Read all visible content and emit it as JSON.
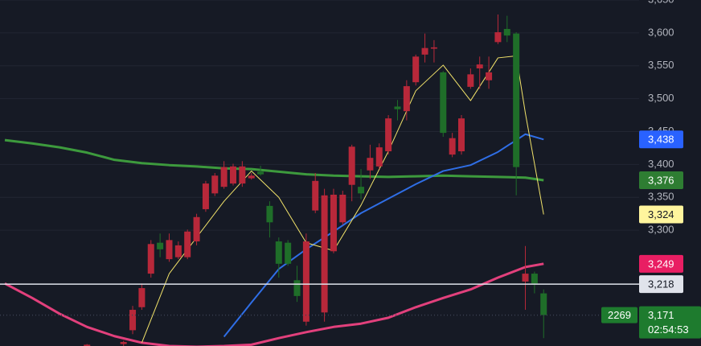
{
  "chart_data": {
    "type": "candlestick",
    "background": "#161a25",
    "grid": true,
    "up_color": "#b8283a",
    "down_color": "#1f6e29",
    "ylim": [
      3124,
      3650
    ],
    "yticks": [
      {
        "value": 3650,
        "label": "3,650"
      },
      {
        "value": 3600,
        "label": "3,600"
      },
      {
        "value": 3550,
        "label": "3,550"
      },
      {
        "value": 3500,
        "label": "3,500"
      },
      {
        "value": 3450,
        "label": "3,450"
      },
      {
        "value": 3400,
        "label": "3,400"
      },
      {
        "value": 3350,
        "label": "3,350"
      },
      {
        "value": 3300,
        "label": "3,300"
      }
    ],
    "open": [
      null,
      null,
      null,
      null,
      null,
      null,
      null,
      null,
      null,
      3124,
      null,
      null,
      null,
      3127,
      3148,
      3183,
      3234,
      3281,
      3256,
      3259,
      3259,
      3283,
      3332,
      3356,
      3366,
      3371,
      3371,
      3379,
      3389,
      3337,
      3283,
      3281,
      3224,
      3161,
      3330,
      3175,
      3268,
      3312,
      3369,
      3366,
      3391,
      3397,
      3420,
      3488,
      3481,
      3525,
      3567,
      3576,
      3540,
      3415,
      3420,
      3518,
      3546,
      3528,
      3586,
      3606,
      3599,
      3222,
      3234,
      3204
    ],
    "high": [
      null,
      null,
      null,
      null,
      null,
      null,
      null,
      null,
      null,
      3127,
      null,
      null,
      null,
      3132,
      3185,
      3219,
      3285,
      3295,
      3295,
      3283,
      3301,
      3325,
      3375,
      3387,
      3405,
      3401,
      3405,
      3387,
      3398,
      3344,
      3289,
      3285,
      3246,
      3295,
      3387,
      3363,
      3363,
      3360,
      3430,
      3393,
      3430,
      3432,
      3475,
      3498,
      3528,
      3567,
      3599,
      3589,
      3542,
      3448,
      3475,
      3546,
      3564,
      3564,
      3628,
      3626,
      3601,
      3276,
      3237,
      3210
    ],
    "low": [
      null,
      null,
      null,
      null,
      null,
      null,
      null,
      null,
      null,
      3124,
      null,
      null,
      null,
      3124,
      3142,
      3179,
      3228,
      3259,
      3252,
      3256,
      3256,
      3277,
      3328,
      3352,
      3363,
      3368,
      3366,
      3377,
      3383,
      3289,
      3228,
      3246,
      3191,
      3155,
      3326,
      3161,
      3265,
      3308,
      3344,
      3347,
      3378,
      3393,
      3415,
      3467,
      3467,
      3520,
      3555,
      3555,
      3442,
      3411,
      3415,
      3515,
      3515,
      3515,
      3583,
      3586,
      3353,
      3179,
      3204,
      3136
    ],
    "close": [
      null,
      null,
      null,
      null,
      null,
      null,
      null,
      null,
      null,
      3126,
      null,
      null,
      null,
      3130,
      3179,
      3212,
      3279,
      3271,
      3285,
      3277,
      3298,
      3320,
      3371,
      3383,
      3396,
      3397,
      3397,
      3383,
      3385,
      3312,
      3249,
      3249,
      3200,
      3283,
      3375,
      3353,
      3354,
      3354,
      3427,
      3356,
      3410,
      3426,
      3470,
      3484,
      3519,
      3564,
      3577,
      3578,
      3448,
      3440,
      3470,
      3537,
      3552,
      3540,
      3601,
      3596,
      3396,
      3234,
      3219,
      3171
    ],
    "series": [
      {
        "color": "#3d9a3d",
        "width": 3,
        "x": [
          0,
          3,
          6,
          9,
          12,
          15,
          18,
          21,
          24,
          27,
          30,
          33,
          36,
          39,
          42,
          45,
          48,
          51,
          54,
          57,
          59
        ],
        "values": [
          3437,
          3432,
          3426,
          3418,
          3407,
          3402,
          3399,
          3397,
          3394,
          3393,
          3389,
          3385,
          3383,
          3382,
          3381,
          3382,
          3383,
          3382,
          3381,
          3380,
          3376
        ]
      },
      {
        "color": "#e2407c",
        "width": 3,
        "x": [
          0,
          3,
          6,
          9,
          12,
          15,
          18,
          21,
          24,
          27,
          30,
          33,
          36,
          39,
          42,
          45,
          48,
          51,
          54,
          57,
          59
        ],
        "values": [
          3219,
          3197,
          3173,
          3153,
          3139,
          3129,
          3124,
          3123,
          3124,
          3126,
          3136,
          3145,
          3153,
          3158,
          3167,
          3183,
          3197,
          3210,
          3228,
          3244,
          3249
        ]
      },
      {
        "color": "#2f6ee6",
        "width": 2,
        "x": [
          24,
          27,
          30,
          33,
          36,
          39,
          42,
          45,
          48,
          51,
          54,
          57,
          59
        ],
        "values": [
          3138,
          3190,
          3241,
          3271,
          3298,
          3326,
          3348,
          3370,
          3390,
          3399,
          3419,
          3446,
          3438
        ]
      },
      {
        "color": "#f2e36a",
        "width": 1,
        "x": [
          15,
          18,
          21,
          24,
          27,
          30,
          33,
          36,
          39,
          42,
          45,
          48,
          51,
          54,
          56,
          57,
          59
        ],
        "values": [
          3129,
          3234,
          3289,
          3344,
          3390,
          3350,
          3281,
          3269,
          3338,
          3420,
          3512,
          3551,
          3497,
          3562,
          3565,
          3478,
          3324
        ]
      }
    ],
    "price_labels": [
      {
        "value": 3438,
        "label": "3,438",
        "color": "#2962ff",
        "text_color": "#ffffff"
      },
      {
        "value": 3376,
        "label": "3,376",
        "color": "#2e7d32",
        "text_color": "#ffffff"
      },
      {
        "value": 3324,
        "label": "3,324",
        "color": "#fff59d",
        "text_color": "#131722"
      },
      {
        "value": 3249,
        "label": "3,249",
        "color": "#e91e63",
        "text_color": "#ffffff"
      },
      {
        "value": 3218,
        "label": "3,218",
        "color": "#e0e3eb",
        "text_color": "#131722",
        "line": "solid"
      },
      {
        "value": 3171,
        "label": "3,171",
        "color": "#1e7b2e",
        "text_color": "#ffffff",
        "line": "dotted",
        "countdown": "02:54:53",
        "tag": "2269"
      }
    ]
  }
}
